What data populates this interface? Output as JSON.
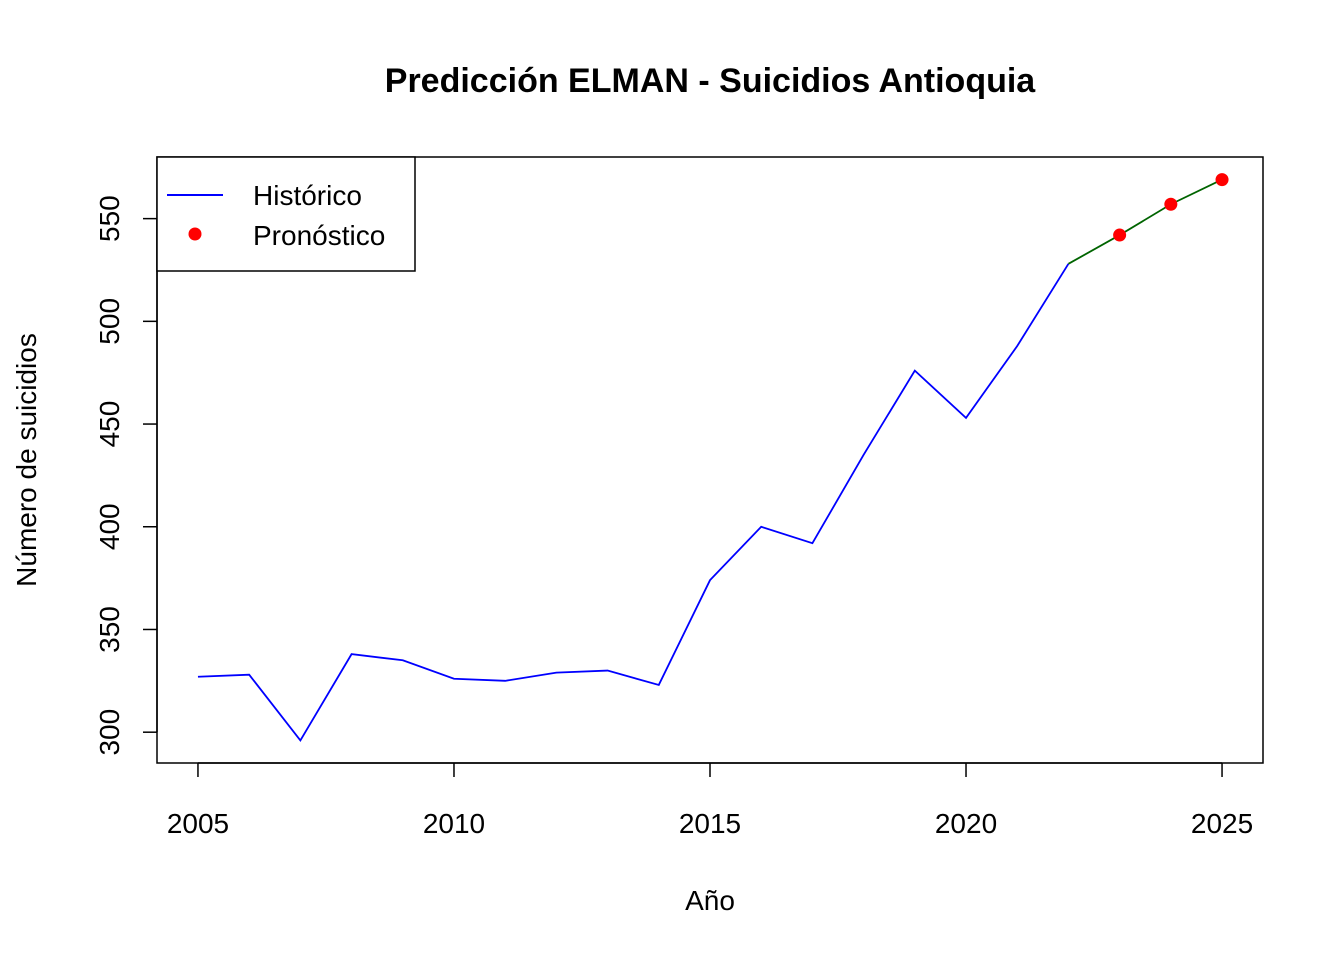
{
  "chart_data": {
    "type": "line",
    "title": "Predicción ELMAN - Suicidios Antioquia",
    "xlabel": "Año",
    "ylabel": "Número de suicidios",
    "xlim": [
      2004.2,
      2025.8
    ],
    "ylim": [
      285,
      580
    ],
    "x_ticks": [
      2005,
      2010,
      2015,
      2020,
      2025
    ],
    "y_ticks": [
      300,
      350,
      400,
      450,
      500,
      550
    ],
    "grid": false,
    "legend_position": "top-left",
    "series": [
      {
        "name": "Histórico",
        "style": "line",
        "color": "#0000ff",
        "x": [
          2005,
          2006,
          2007,
          2008,
          2009,
          2010,
          2011,
          2012,
          2013,
          2014,
          2015,
          2016,
          2017,
          2018,
          2019,
          2020,
          2021,
          2022
        ],
        "values": [
          327,
          328,
          296,
          338,
          335,
          326,
          325,
          329,
          330,
          323,
          374,
          400,
          392,
          435,
          476,
          453,
          488,
          528
        ]
      },
      {
        "name": "Pronóstico",
        "style": "points",
        "color": "#ff0000",
        "x": [
          2023,
          2024,
          2025
        ],
        "values": [
          542,
          557,
          569
        ]
      },
      {
        "style": "line",
        "color": "#006400",
        "x": [
          2022,
          2023,
          2024,
          2025
        ],
        "values": [
          528,
          542,
          557,
          569
        ]
      }
    ]
  }
}
